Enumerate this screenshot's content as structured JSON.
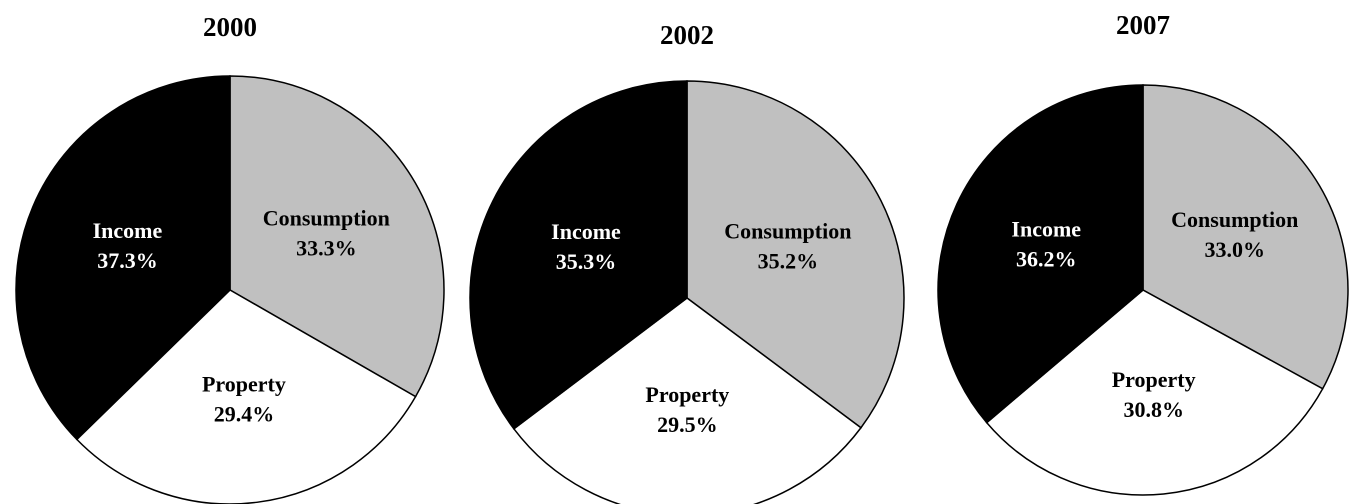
{
  "chart_data": [
    {
      "type": "pie",
      "title": "2000",
      "categories": [
        "Consumption",
        "Property",
        "Income"
      ],
      "values": [
        33.3,
        29.4,
        37.3
      ],
      "value_labels": [
        "33.3%",
        "29.4%",
        "37.3%"
      ],
      "colors": [
        "#c0c0c0",
        "#ffffff",
        "#000000"
      ]
    },
    {
      "type": "pie",
      "title": "2002",
      "categories": [
        "Consumption",
        "Property",
        "Income"
      ],
      "values": [
        35.2,
        29.5,
        35.3
      ],
      "value_labels": [
        "35.2%",
        "29.5%",
        "35.3%"
      ],
      "colors": [
        "#c0c0c0",
        "#ffffff",
        "#000000"
      ]
    },
    {
      "type": "pie",
      "title": "2007",
      "categories": [
        "Consumption",
        "Property",
        "Income"
      ],
      "values": [
        33.0,
        30.8,
        36.2
      ],
      "value_labels": [
        "33.0%",
        "30.8%",
        "36.2%"
      ],
      "colors": [
        "#c0c0c0",
        "#ffffff",
        "#000000"
      ]
    }
  ]
}
